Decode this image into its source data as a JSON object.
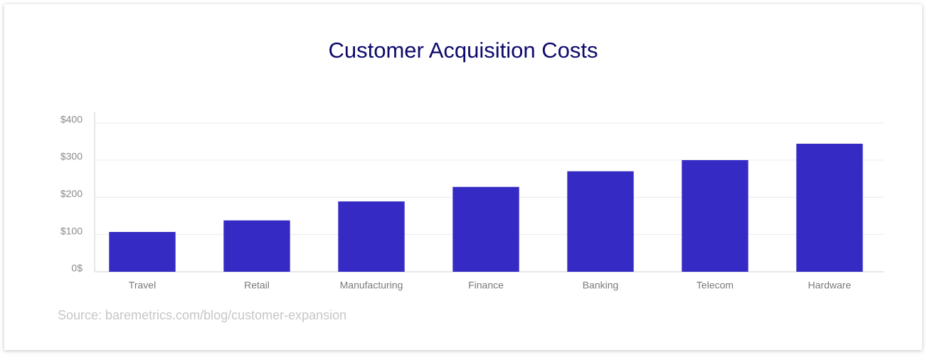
{
  "chart_data": {
    "type": "bar",
    "title": "Customer Acquisition Costs",
    "categories": [
      "Travel",
      "Retail",
      "Manufacturing",
      "Finance",
      "Banking",
      "Telecom",
      "Hardware"
    ],
    "values": [
      107,
      138,
      189,
      228,
      270,
      300,
      344
    ],
    "color": "#352bc4",
    "ylim": [
      0,
      430
    ],
    "yticks": [
      {
        "value": 0,
        "label": "0$"
      },
      {
        "value": 100,
        "label": "$100"
      },
      {
        "value": 200,
        "label": "$200"
      },
      {
        "value": 300,
        "label": "$300"
      },
      {
        "value": 400,
        "label": "$400"
      }
    ],
    "grid": true,
    "source": "Source: baremetrics.com/blog/customer-expansion"
  }
}
